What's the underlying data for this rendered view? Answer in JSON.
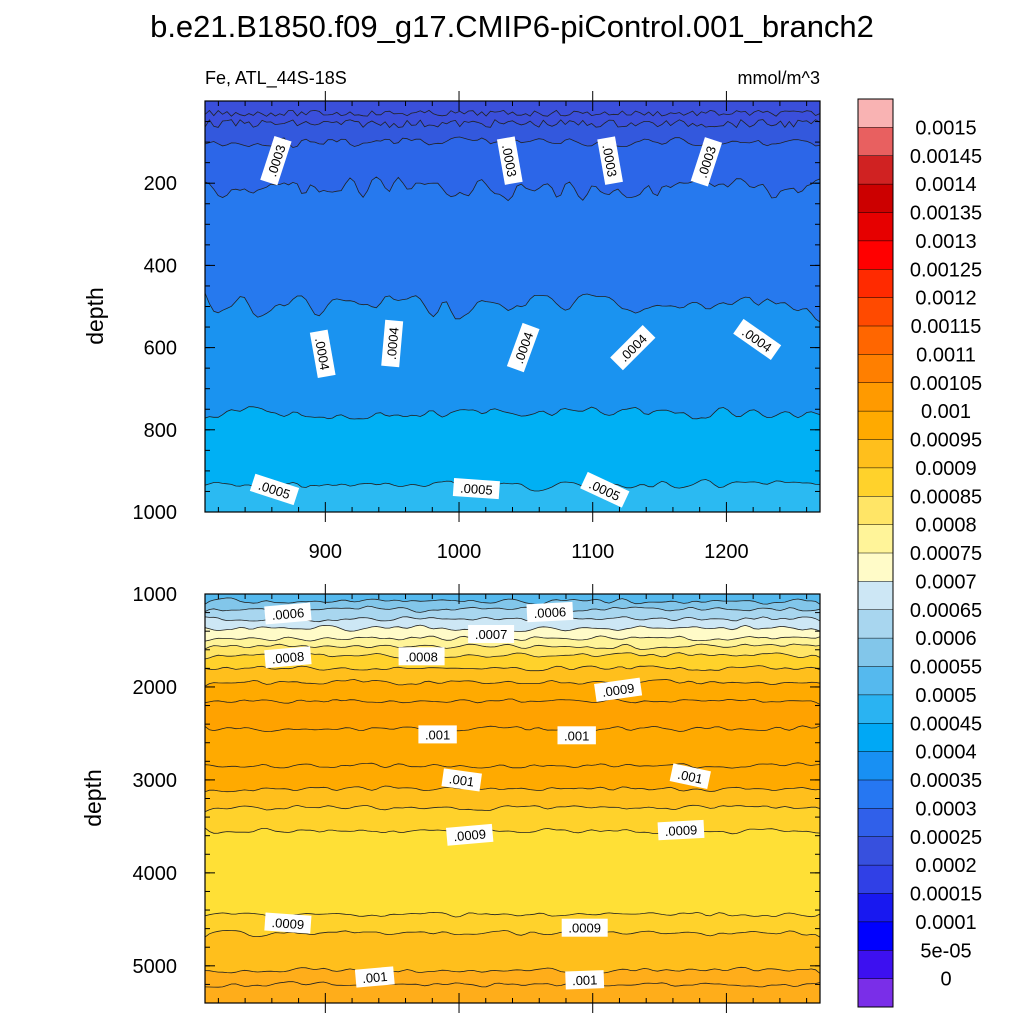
{
  "chart_data": {
    "type": "contour",
    "title": "b.e21.B1850.f09_g17.CMIP6-piControl.001_branch2",
    "variable_label": "Fe, ATL_44S-18S",
    "units": "mmol/m^3",
    "x_range": [
      810,
      1270
    ],
    "colorbar": {
      "labels": [
        "0.0015",
        "0.00145",
        "0.0014",
        "0.00135",
        "0.0013",
        "0.00125",
        "0.0012",
        "0.00115",
        "0.0011",
        "0.00105",
        "0.001",
        "0.00095",
        "0.0009",
        "0.00085",
        "0.0008",
        "0.00075",
        "0.0007",
        "0.00065",
        "0.0006",
        "0.00055",
        "0.0005",
        "0.00045",
        "0.0004",
        "0.00035",
        "0.0003",
        "0.00025",
        "0.0002",
        "0.00015",
        "0.0001",
        "5e-05",
        "0"
      ],
      "colors": [
        "#f9b3b3",
        "#e86060",
        "#d02222",
        "#cc0000",
        "#e60000",
        "#ff0000",
        "#ff2a00",
        "#ff4a00",
        "#ff6600",
        "#ff7f00",
        "#ff9a00",
        "#ffaa00",
        "#ffbf1c",
        "#ffd22b",
        "#ffe566",
        "#fff499",
        "#fffbc8",
        "#cde7f5",
        "#a8d6ef",
        "#82c6ea",
        "#55b9ee",
        "#2ab3f2",
        "#00a8f5",
        "#1890f3",
        "#2677f2",
        "#3060ea",
        "#3750de",
        "#3040e6",
        "#1818f0",
        "#0000ff",
        "#3d10f0",
        "#7a2ee8"
      ]
    },
    "panels": [
      {
        "name": "upper",
        "ylabel": "depth",
        "y_range": [
          0,
          1000
        ],
        "y_inverted": true,
        "xticks": [
          "900",
          "1000",
          "1100",
          "1200"
        ],
        "yticks": [
          "200",
          "400",
          "600",
          "800",
          "1000"
        ],
        "contour_labels": [
          {
            "text": ".0003",
            "x": 863,
            "y": 145,
            "angle": -72
          },
          {
            "text": ".0003",
            "x": 1038,
            "y": 145,
            "angle": 80
          },
          {
            "text": ".0003",
            "x": 1113,
            "y": 145,
            "angle": 80
          },
          {
            "text": ".0003",
            "x": 1185,
            "y": 148,
            "angle": -72
          },
          {
            "text": ".0004",
            "x": 898,
            "y": 615,
            "angle": 80
          },
          {
            "text": ".0004",
            "x": 950,
            "y": 590,
            "angle": -85
          },
          {
            "text": ".0004",
            "x": 1048,
            "y": 600,
            "angle": -70
          },
          {
            "text": ".0004",
            "x": 1130,
            "y": 600,
            "angle": -45
          },
          {
            "text": ".0004",
            "x": 1223,
            "y": 580,
            "angle": 35
          },
          {
            "text": ".0005",
            "x": 862,
            "y": 945,
            "angle": 18
          },
          {
            "text": ".0005",
            "x": 1013,
            "y": 943,
            "angle": 4
          },
          {
            "text": ".0005",
            "x": 1109,
            "y": 946,
            "angle": 25
          }
        ]
      },
      {
        "name": "lower",
        "ylabel": "depth",
        "y_range": [
          1000,
          5400
        ],
        "y_inverted": true,
        "yticks": [
          "1000",
          "2000",
          "3000",
          "4000",
          "5000"
        ],
        "contour_labels": [
          {
            "text": ".0006",
            "x": 872,
            "y": 1210,
            "angle": -5
          },
          {
            "text": ".0006",
            "x": 1068,
            "y": 1195,
            "angle": -3
          },
          {
            "text": ".0007",
            "x": 1024,
            "y": 1430,
            "angle": 0
          },
          {
            "text": ".0008",
            "x": 872,
            "y": 1680,
            "angle": -5
          },
          {
            "text": ".0008",
            "x": 972,
            "y": 1670,
            "angle": 0
          },
          {
            "text": ".0009",
            "x": 1119,
            "y": 2030,
            "angle": -8
          },
          {
            "text": ".001",
            "x": 984,
            "y": 2510,
            "angle": 0
          },
          {
            "text": ".001",
            "x": 1088,
            "y": 2520,
            "angle": 0
          },
          {
            "text": ".001",
            "x": 1002,
            "y": 3000,
            "angle": 8
          },
          {
            "text": ".001",
            "x": 1173,
            "y": 2960,
            "angle": 12
          },
          {
            "text": ".0009",
            "x": 1008,
            "y": 3590,
            "angle": -5
          },
          {
            "text": ".0009",
            "x": 1166,
            "y": 3540,
            "angle": -3
          },
          {
            "text": ".0009",
            "x": 872,
            "y": 4540,
            "angle": 4
          },
          {
            "text": ".0009",
            "x": 1094,
            "y": 4590,
            "angle": 0
          },
          {
            "text": ".001",
            "x": 937,
            "y": 5120,
            "angle": -5
          },
          {
            "text": ".001",
            "x": 1094,
            "y": 5150,
            "angle": -2
          }
        ]
      }
    ]
  }
}
